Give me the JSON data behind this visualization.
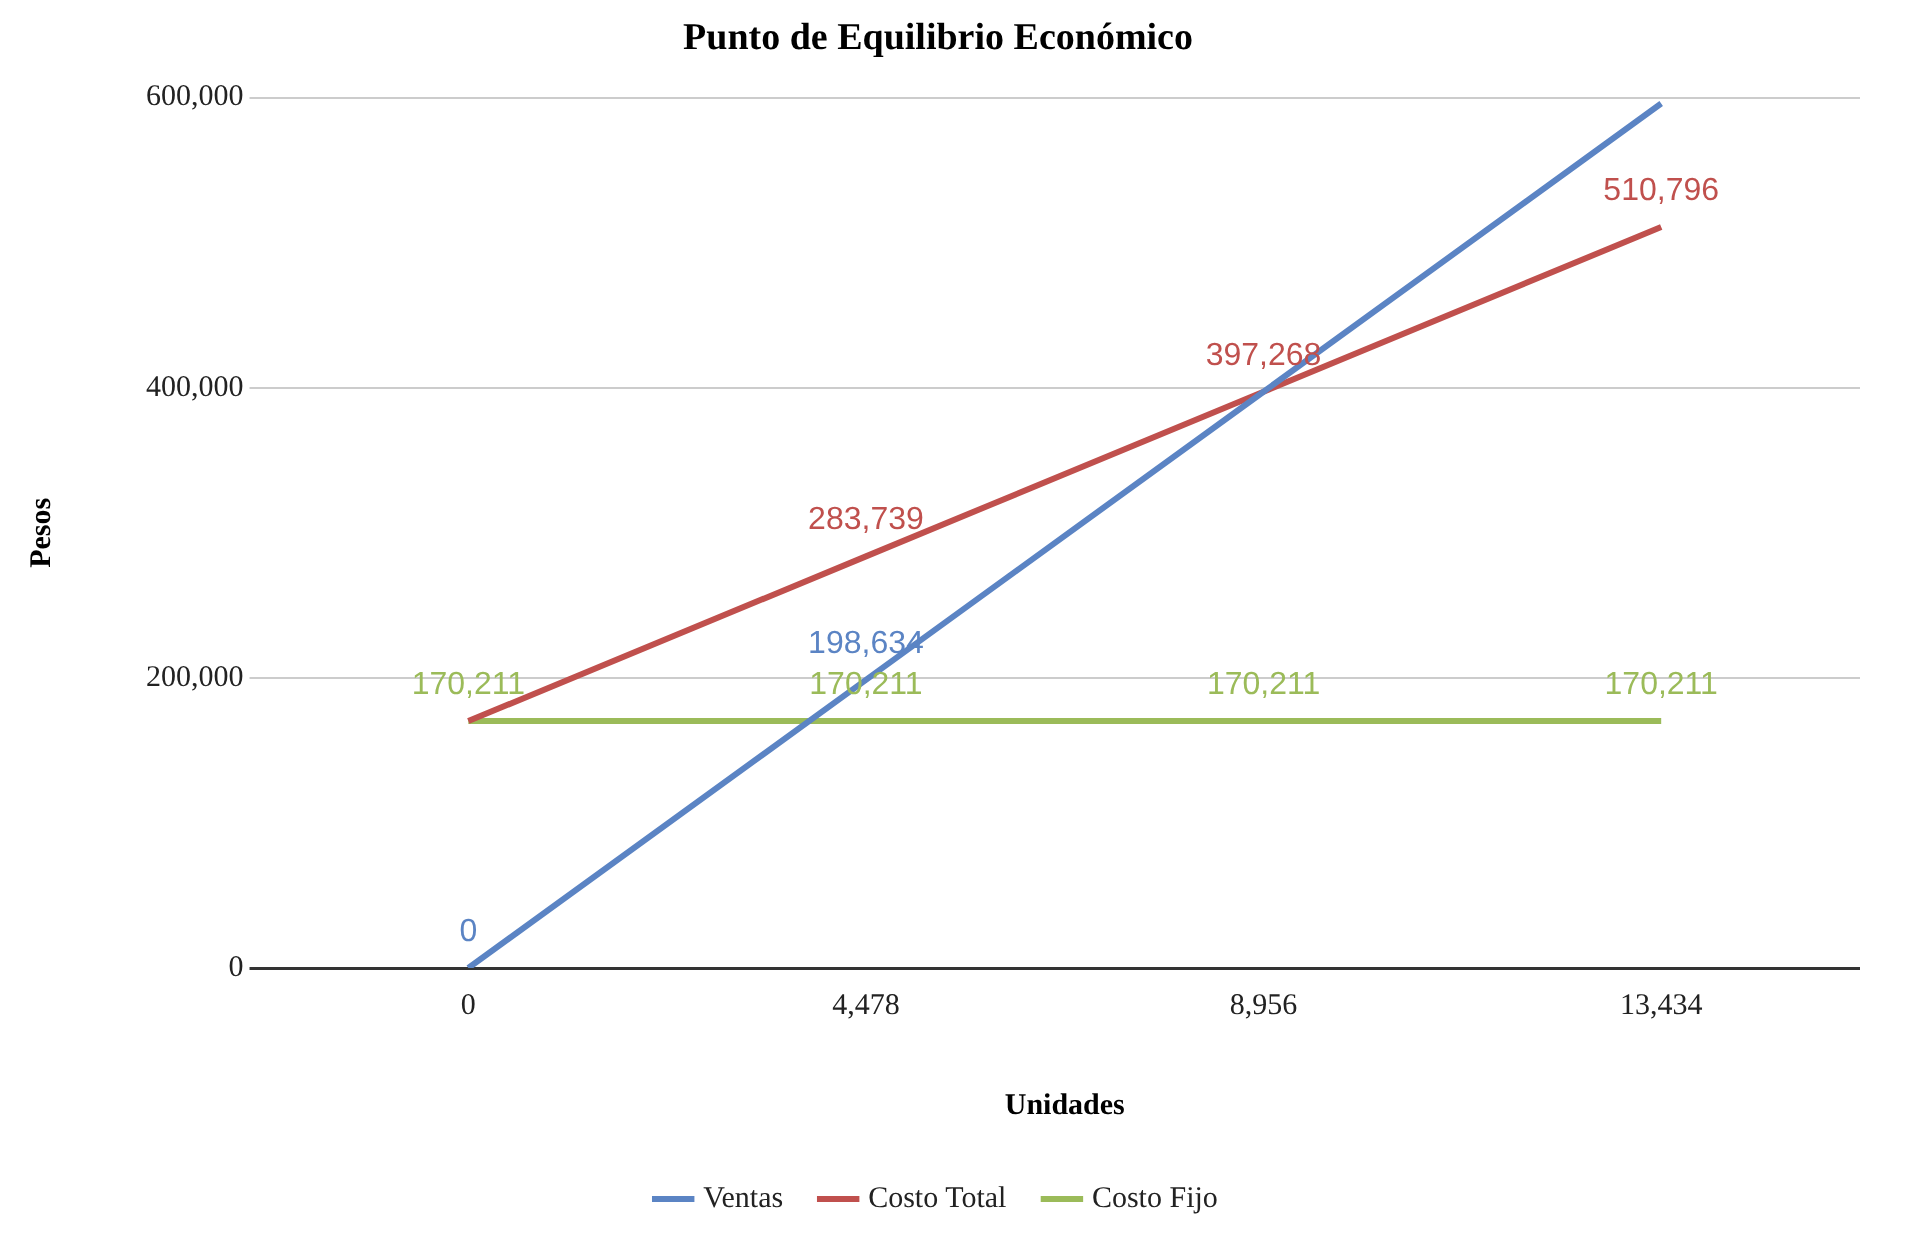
{
  "chart_data": {
    "type": "line",
    "title": "Punto de Equilibrio Económico",
    "xlabel": "Unidades",
    "ylabel": "Pesos",
    "categories": [
      "0",
      "4,478",
      "8,956",
      "13,434"
    ],
    "ylim": [
      0,
      600000
    ],
    "yticks": [
      {
        "value": 0,
        "label": "0"
      },
      {
        "value": 200000,
        "label": "200,000"
      },
      {
        "value": 400000,
        "label": "400,000"
      },
      {
        "value": 600000,
        "label": "600,000"
      }
    ],
    "grid": "y",
    "legend": "bottom",
    "marker": "none",
    "line_style": "solid",
    "series": [
      {
        "name": "Ventas",
        "color": "#5b84c4",
        "values": [
          0,
          198634,
          397268,
          595902
        ],
        "value_labels": [
          "0",
          "198,634",
          null,
          null
        ]
      },
      {
        "name": "Costo Total",
        "color": "#c0504d",
        "values": [
          170211,
          283739,
          397268,
          510796
        ],
        "value_labels": [
          null,
          "283,739",
          "397,268",
          "510,796"
        ]
      },
      {
        "name": "Costo Fijo",
        "color": "#9bbb59",
        "values": [
          170211,
          170211,
          170211,
          170211
        ],
        "value_labels": [
          "170,211",
          "170,211",
          "170,211",
          "170,211"
        ]
      }
    ]
  }
}
